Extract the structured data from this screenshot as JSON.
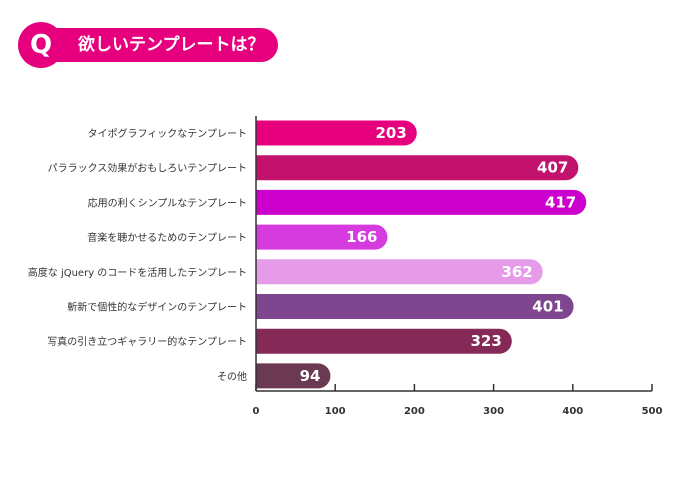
{
  "header": {
    "q_label": "Q",
    "question": "欲しいテンプレートは？",
    "accent": "#e6007e"
  },
  "chart_data": {
    "type": "bar",
    "orientation": "horizontal",
    "title": "",
    "xlabel": "",
    "ylabel": "",
    "xlim": [
      0,
      500
    ],
    "x_ticks": [
      0,
      100,
      200,
      300,
      400,
      500
    ],
    "grid": false,
    "categories": [
      "タイポグラフィックなテンプレート",
      "パララックス効果がおもしろいテンプレート",
      "応用の利くシンプルなテンプレート",
      "音楽を聴かせるためのテンプレート",
      "高度な jQuery のコードを活用したテンプレート",
      "斬新で個性的なデザインのテンプレート",
      "写真の引き立つギャラリー的なテンプレート",
      "その他"
    ],
    "values": [
      203,
      407,
      417,
      166,
      362,
      401,
      323,
      94
    ],
    "colors": [
      "#e6007e",
      "#c2126d",
      "#cc00cc",
      "#d63be0",
      "#e69be9",
      "#7e468f",
      "#852a57",
      "#6b3952"
    ]
  }
}
